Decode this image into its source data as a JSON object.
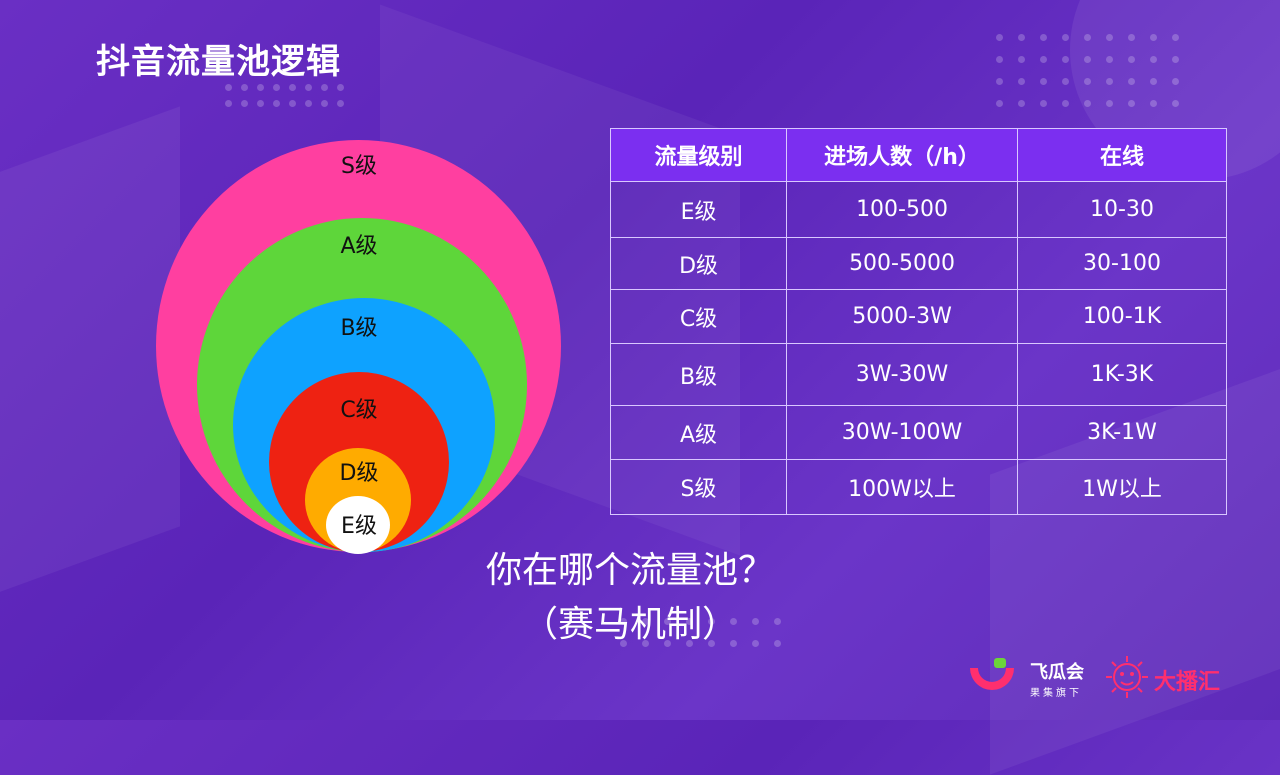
{
  "title": "抖音流量池逻辑",
  "circles": [
    {
      "label": "S级",
      "color": "#ff3fa0"
    },
    {
      "label": "A级",
      "color": "#5ed63a"
    },
    {
      "label": "B级",
      "color": "#0ea2ff"
    },
    {
      "label": "C级",
      "color": "#ee2212"
    },
    {
      "label": "D级",
      "color": "#ffab00"
    },
    {
      "label": "E级",
      "color": "#ffffff"
    }
  ],
  "table": {
    "headers": [
      "流量级别",
      "进场人数（/h）",
      "在线"
    ],
    "rows": [
      [
        "E级",
        "100-500",
        "10-30"
      ],
      [
        "D级",
        "500-5000",
        "30-100"
      ],
      [
        "C级",
        "5000-3W",
        "100-1K"
      ],
      [
        "B级",
        "3W-30W",
        "1K-3K"
      ],
      [
        "A级",
        "30W-100W",
        "3K-1W"
      ],
      [
        "S级",
        "100W以上",
        "1W以上"
      ]
    ]
  },
  "question": {
    "line1": "你在哪个流量池？",
    "line2": "（赛马机制）"
  },
  "logos": {
    "feigua": "飞瓜会",
    "feigua_sub": "果集旗下",
    "dabohui": "大播汇"
  }
}
